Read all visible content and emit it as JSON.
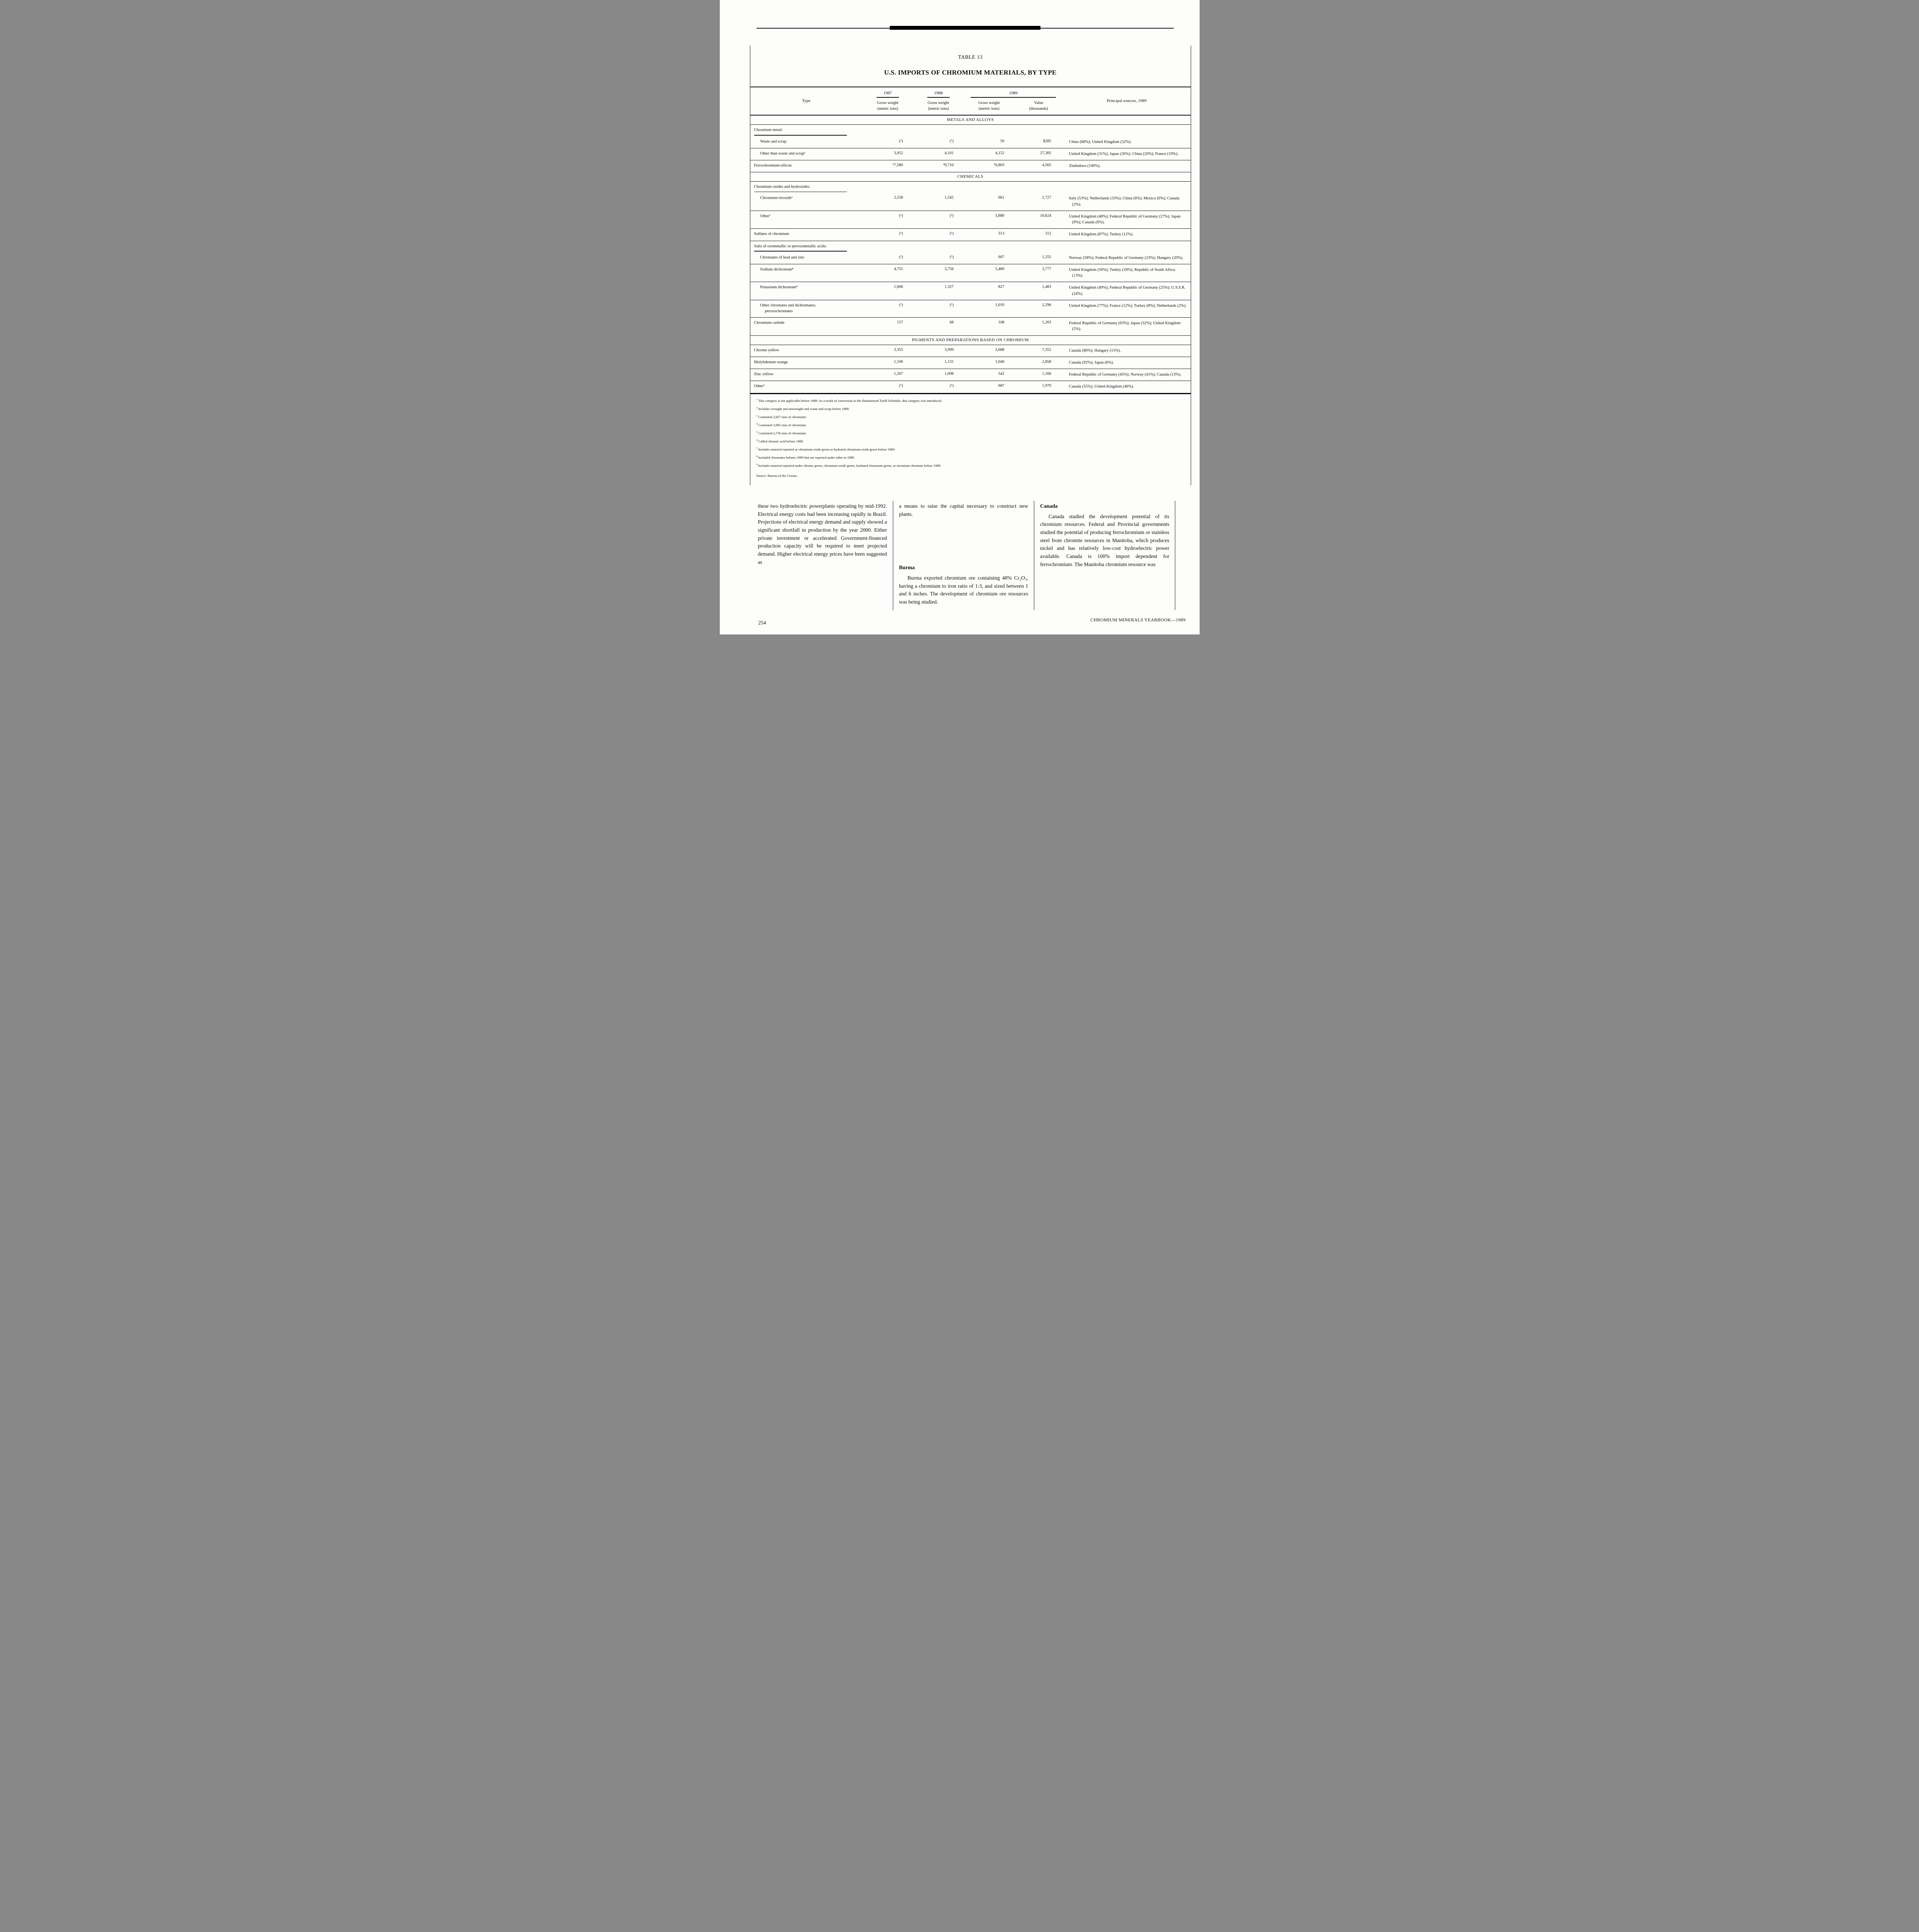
{
  "page": {
    "number": "254",
    "footer_right": "CHROMIUM MINERALS YEARBOOK—1989"
  },
  "table": {
    "label": "TABLE 13",
    "title": "U.S. IMPORTS OF CHROMIUM MATERIALS, BY TYPE",
    "headers": {
      "type": "Type",
      "y1987": "1987",
      "y1988": "1988",
      "y1989": "1989",
      "gross_weight": "Gross weight",
      "metric_tons": "(metric tons)",
      "value": "Value",
      "thousands": "(thousands)",
      "principal_sources": "Principal sources, 1989"
    },
    "sections": [
      {
        "heading": "METALS AND ALLOYS",
        "rows": [
          {
            "kind": "group",
            "label": "Chromium metal:"
          },
          {
            "kind": "data",
            "label": "Waste and scrap",
            "w1987": "(¹)",
            "w1988": "(¹)",
            "w1989": "50",
            "value": "$285",
            "sources": "China (68%); United Kingdom (32%)."
          },
          {
            "kind": "data",
            "label": "Other than waste and scrap²",
            "w1987": "3,952",
            "w1988": "4,101",
            "w1989": "4,152",
            "value": "27,305",
            "sources": "United Kingdom (31%); Japan (26%); China (20%); France (19%)."
          },
          {
            "kind": "data",
            "label": "Ferrochromium-silicon",
            "w1987": "³7,580",
            "w1988": "⁴9,710",
            "w1989": "⁵6,803",
            "value": "4,565",
            "sources": "Zimbabwe (100%)."
          }
        ]
      },
      {
        "heading": "CHEMICALS",
        "rows": [
          {
            "kind": "group",
            "label": "Chromium oxides and hydroxides:"
          },
          {
            "kind": "data",
            "label": "Chromium trioxide⁶",
            "w1987": "2,558",
            "w1988": "1,542",
            "w1989": "661",
            "value": "2,727",
            "sources": "Italy (53%); Netherlands (33%); China (6%); Mexico (6%); Canada (2%)."
          },
          {
            "kind": "data",
            "label": "Other⁷",
            "w1987": "(¹)",
            "w1988": "(¹)",
            "w1989": "3,880",
            "value": "10,624",
            "sources": "United Kingdom (48%); Federal Republic of Germany (27%); Japan (9%); Canada (6%)."
          },
          {
            "kind": "data",
            "label": "Sulfates of chromium",
            "w1987": "(¹)",
            "w1988": "(¹)",
            "w1989": "313",
            "value": "312",
            "sources": "United Kingdom (87%); Turkey (12%)."
          },
          {
            "kind": "group",
            "label": "Salts of oxometallic or peroxometallic acids:"
          },
          {
            "kind": "data",
            "label": "Chromates of lead and zinc",
            "w1987": "(¹)",
            "w1988": "(¹)",
            "w1989": "607",
            "value": "1,255",
            "sources": "Norway (58%); Federal Republic of Germany (23%); Hungary (20%)."
          },
          {
            "kind": "data",
            "label": "Sodium dichromate⁸",
            "w1987": "4,755",
            "w1988": "3,756",
            "w1989": "5,489",
            "value": "3,777",
            "sources": "United Kingdom (56%); Turkey (18%); Republic of South Africa (13%)."
          },
          {
            "kind": "data",
            "label": "Potassium dichromate⁸",
            "w1987": "1,006",
            "w1988": "1,327",
            "w1989": "827",
            "value": "1,483",
            "sources": "United Kingdom (49%); Federal Republic of Germany (25%); U.S.S.R. (24%)."
          },
          {
            "kind": "data",
            "label": "Other chromates and dichromates; peroxochromates",
            "w1987": "(¹)",
            "w1988": "(¹)",
            "w1989": "1,010",
            "value": "2,296",
            "sources": "United Kingdom (77%); France (12%); Turkey (8%); Netherlands (2%)."
          },
          {
            "kind": "data",
            "label": "Chromium carbide",
            "w1987": "157",
            "w1988": "68",
            "w1989": "108",
            "value": "1,203",
            "sources": "Federal Republic of Germany (63%); Japan (32%); United Kingdom (5%)."
          }
        ]
      },
      {
        "heading": "PIGMENTS AND PREPARATIONS BASED ON CHROMIUM",
        "rows": [
          {
            "kind": "data",
            "label": "Chrome yellow",
            "w1987": "3,355",
            "w1988": "3,999",
            "w1989": "3,688",
            "value": "7,352",
            "sources": "Canada (80%); Hungary (15%)."
          },
          {
            "kind": "data",
            "label": "Molybdenum orange",
            "w1987": "1,106",
            "w1988": "1,131",
            "w1989": "1,046",
            "value": "2,858",
            "sources": "Canada (92%); Japan (6%)."
          },
          {
            "kind": "data",
            "label": "Zinc yellow",
            "w1987": "1,207",
            "w1988": "1,098",
            "w1989": "542",
            "value": "1,166",
            "sources": "Federal Republic of Germany (45%); Norway (41%); Canada (13%)."
          },
          {
            "kind": "data",
            "label": "Other⁹",
            "w1987": "(¹)",
            "w1988": "(¹)",
            "w1989": "687",
            "value": "1,979",
            "sources": "Canada (55%); United Kingdom (46%)."
          }
        ]
      }
    ],
    "footnotes": [
      {
        "marker": "1",
        "text": "This category is not applicable before 1989. As a result of conversion to the Harmonized Tariff Schedule, this category was introduced."
      },
      {
        "marker": "2",
        "text": "Includes wrought and unwrought and waste and scrap before 1989."
      },
      {
        "marker": "3",
        "text": "Contained 2,827 tons of chromium."
      },
      {
        "marker": "4",
        "text": "Contained 3,885 tons of chromium."
      },
      {
        "marker": "5",
        "text": "Contained 2,756 tons of chromium."
      },
      {
        "marker": "6",
        "text": "Called chromic acid before 1989."
      },
      {
        "marker": "7",
        "text": "Includes material reported as chromium oxide green or hydrated chromium oxide green before 1989."
      },
      {
        "marker": "8",
        "text": "Included chromates beform 1989 that are reported under other in 1989."
      },
      {
        "marker": "9",
        "text": "Includes material reported under chrome green, chromium oxide green, hydrated chromium green, or strontium chromate before 1989."
      }
    ],
    "source": "Source: Bureau of the Census."
  },
  "articles": {
    "column1": {
      "paragraph": "these two hydroelectric powerplants operating by mid-1992. Electrical energy costs had been increasing rapidly in Brazil. Projections of electrical energy demand and supply showed a significant shortfall in production by the year 2000. Either private investment or accelerated Government-financed production capacity will be required to meet projected demand. Higher electrical energy prices have been suggested as"
    },
    "column2": {
      "paragraph1": "a means to raise the capital necessary to construct new plants.",
      "heading": "Burma",
      "paragraph2": "Burma exported chromium ore containing 48% Cr₂O₃, having a chromium to iron ratio of 1:3, and sized between 1 and 6 inches. The development of chromium ore resources was being studied."
    },
    "column3": {
      "heading": "Canada",
      "paragraph": "Canada studied the development potential of its chromium resources. Federal and Provincial governments studied the potential of producing ferrochromium or stainless steel from chromite resources in Manitoba, which produces nickel and has relatively low-cost hydroelectric power available. Canada is 100% import dependent for ferrochromium. The Manitoba chromium resource was"
    }
  }
}
